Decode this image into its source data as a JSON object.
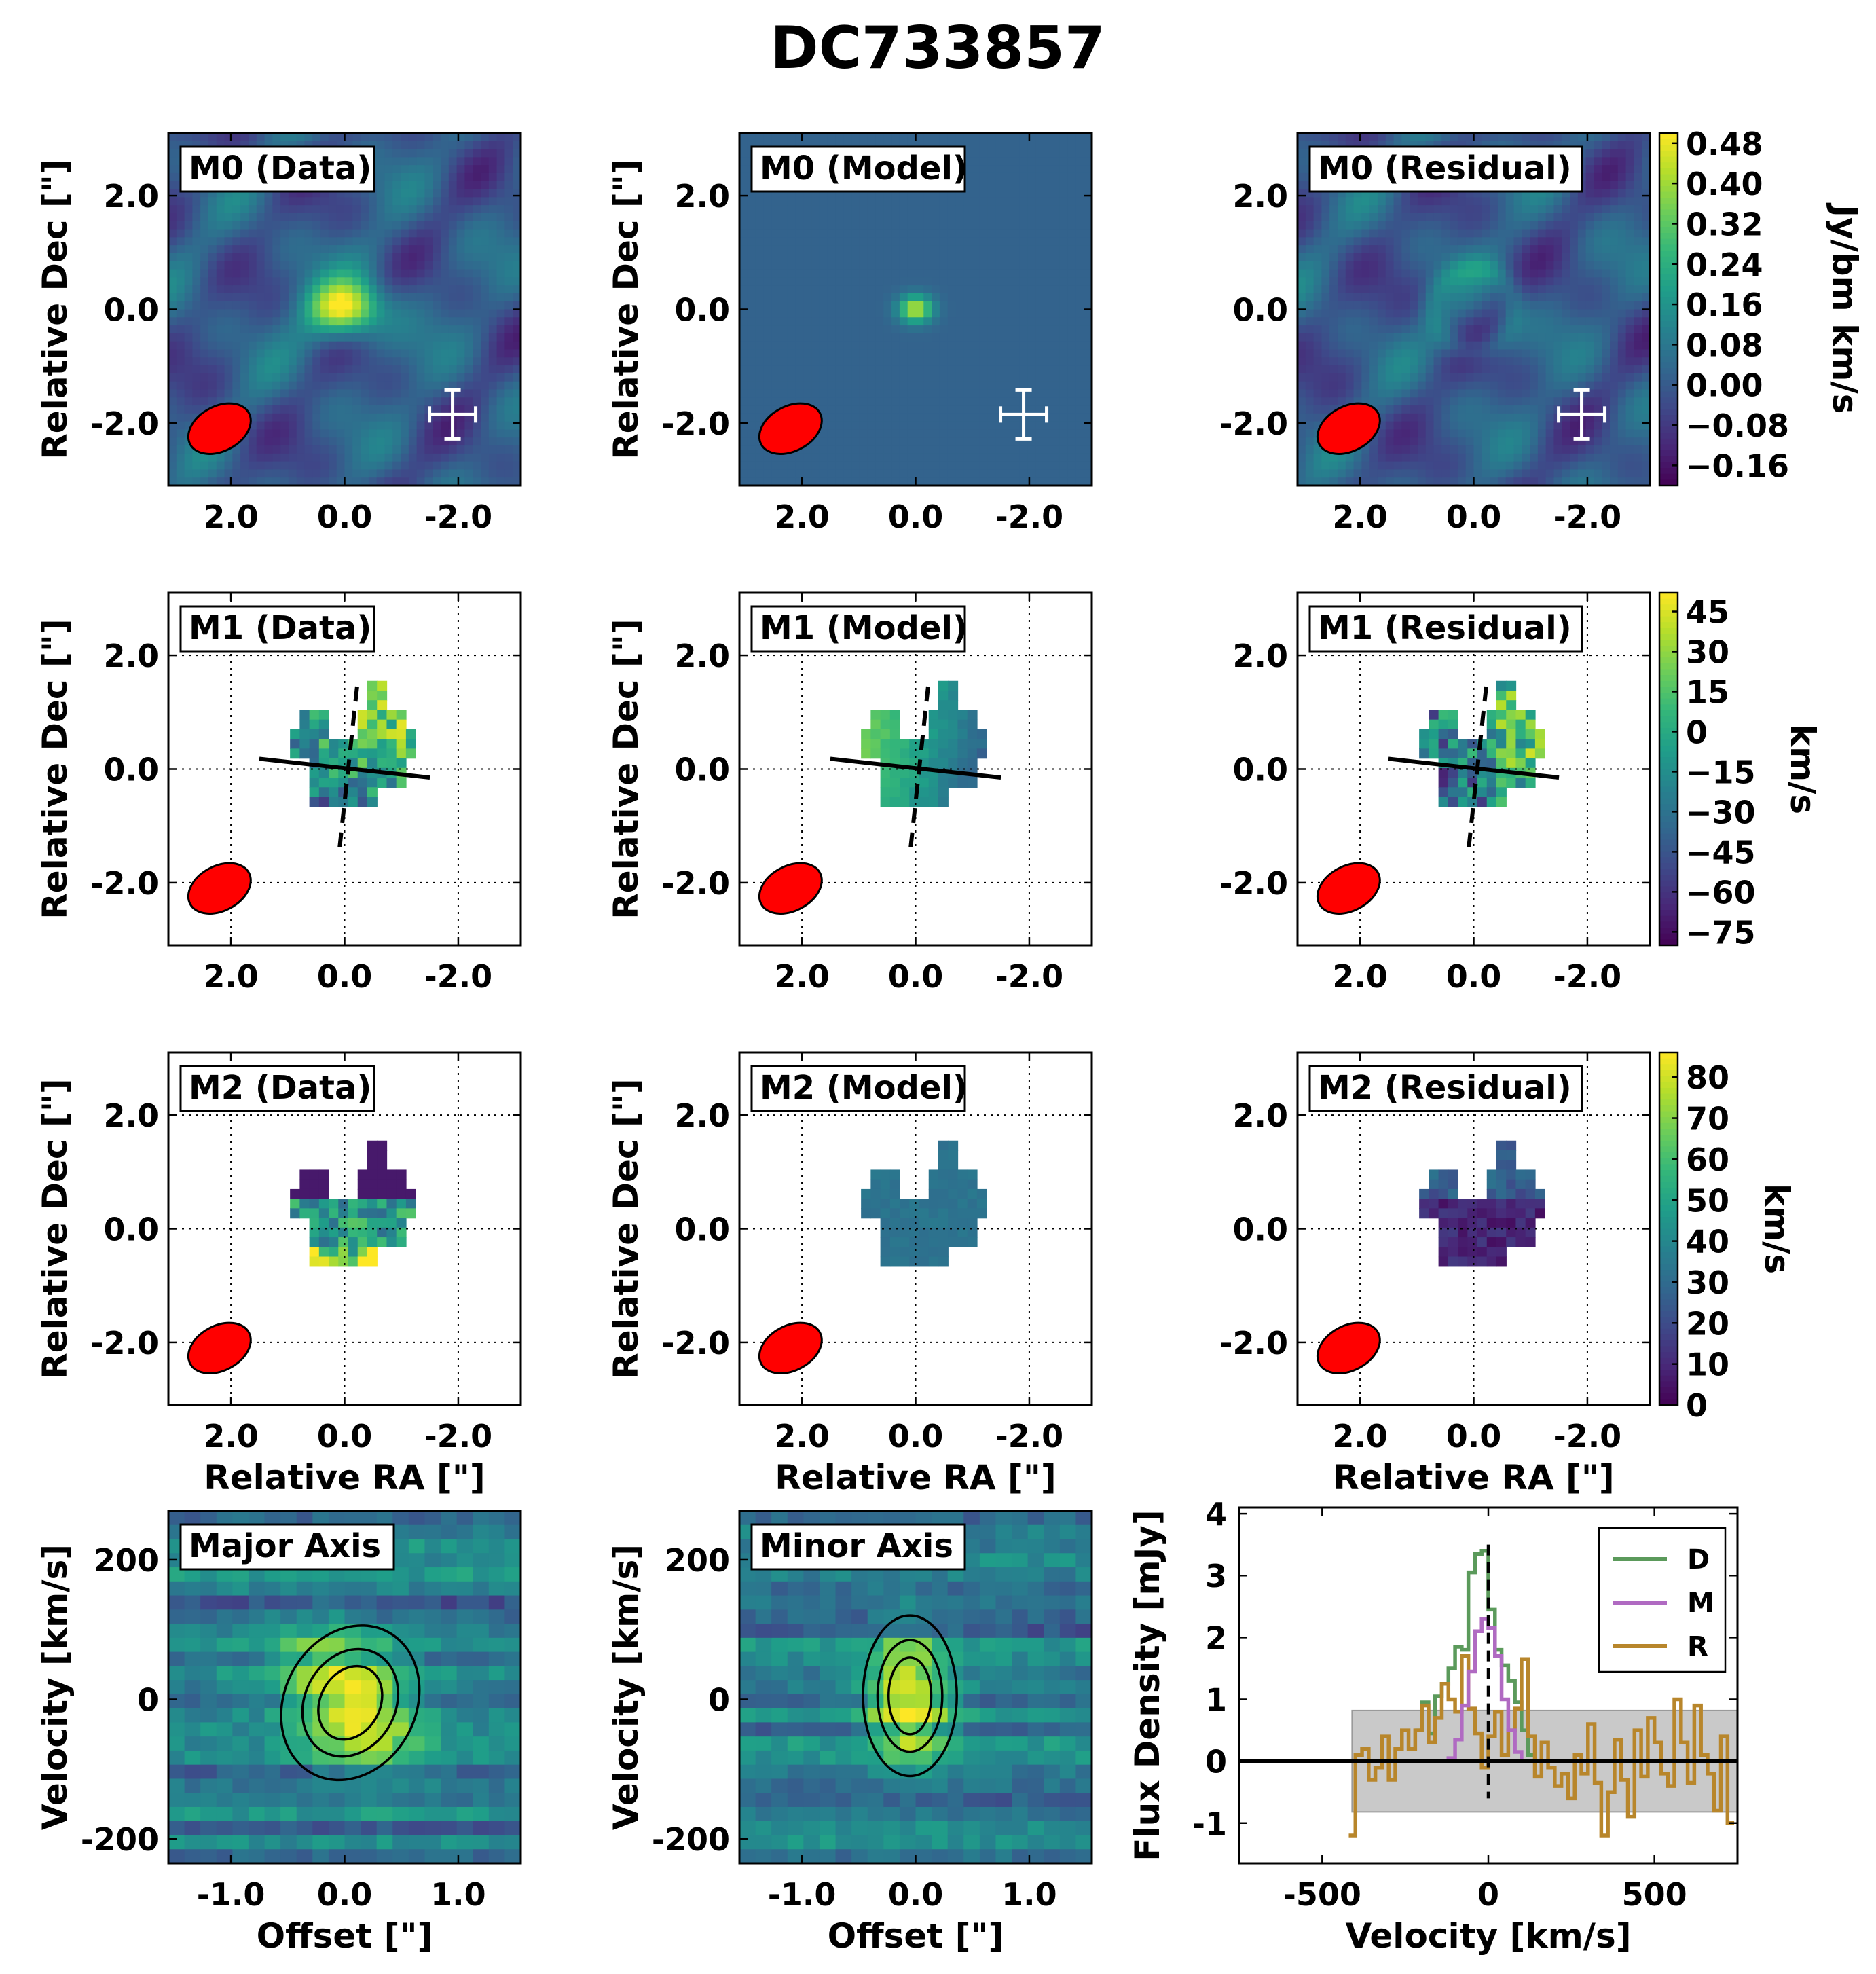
{
  "title": "DC733857",
  "colors": {
    "viridis": [
      "#440154",
      "#482878",
      "#3e4989",
      "#31688e",
      "#26828e",
      "#1f9e89",
      "#35b779",
      "#6ece58",
      "#b5de2b",
      "#fde725"
    ],
    "beam": "#ff0000",
    "data_line": "#5b9a5b",
    "model_line": "#b06ac2",
    "residual_line": "#b8862b",
    "noise_band": "#c9c9c9"
  },
  "panel_labels": {
    "m0": [
      "M0 (Data)",
      "M0 (Model)",
      "M0 (Residual)"
    ],
    "m1": [
      "M1 (Data)",
      "M1 (Model)",
      "M1 (Residual)"
    ],
    "m2": [
      "M2 (Data)",
      "M2 (Model)",
      "M2 (Residual)"
    ],
    "pv": [
      "Major Axis",
      "Minor Axis"
    ]
  },
  "map_axes": {
    "xlabel": "Relative RA [\"]",
    "ylabel": "Relative Dec [\"]",
    "ticks": [
      "2.0",
      "0.0",
      "-2.0"
    ],
    "tick_values": [
      2.0,
      0.0,
      -2.0
    ],
    "lim": [
      3.1,
      -3.1
    ]
  },
  "colorbars": {
    "m0": {
      "label": "Jy/bm km/s",
      "ticks": [
        "0.48",
        "0.40",
        "0.32",
        "0.24",
        "0.16",
        "0.08",
        "0.00",
        "−0.08",
        "−0.16"
      ],
      "tick_values": [
        0.48,
        0.4,
        0.32,
        0.24,
        0.16,
        0.08,
        0.0,
        -0.08,
        -0.16
      ],
      "range": [
        -0.2,
        0.5
      ]
    },
    "m1": {
      "label": "km/s",
      "ticks": [
        "45",
        "30",
        "15",
        "0",
        "−15",
        "−30",
        "−45",
        "−60",
        "−75"
      ],
      "tick_values": [
        45,
        30,
        15,
        0,
        -15,
        -30,
        -45,
        -60,
        -75
      ],
      "range": [
        -80,
        52
      ]
    },
    "m2": {
      "label": "km/s",
      "ticks": [
        "80",
        "70",
        "60",
        "50",
        "40",
        "30",
        "20",
        "10",
        "0"
      ],
      "tick_values": [
        80,
        70,
        60,
        50,
        40,
        30,
        20,
        10,
        0
      ],
      "range": [
        0,
        86
      ]
    }
  },
  "pv_axes": {
    "xlabel": "Offset [\"]",
    "ylabel": "Velocity [km/s]",
    "xticks": [
      "-1.0",
      "0.0",
      "1.0"
    ],
    "xtick_values": [
      -1.0,
      0.0,
      1.0
    ],
    "yticks": [
      "200",
      "0",
      "-200"
    ],
    "ytick_values": [
      200,
      0,
      -200
    ],
    "xlim": [
      -1.55,
      1.55
    ],
    "ylim": [
      -235,
      270
    ]
  },
  "chart_data": {
    "type": "line",
    "title": "",
    "xlabel": "Velocity [km/s]",
    "ylabel": "Flux Density [mJy]",
    "xlim": [
      -750,
      750
    ],
    "ylim": [
      -1.65,
      4.1
    ],
    "xticks": [
      "-500",
      "0",
      "500"
    ],
    "xtick_values": [
      -500,
      0,
      500
    ],
    "yticks": [
      "4",
      "3",
      "2",
      "1",
      "0",
      "-1"
    ],
    "ytick_values": [
      4,
      3,
      2,
      1,
      0,
      -1
    ],
    "legend_position": "top-right",
    "noise_band": {
      "x": [
        -410,
        750
      ],
      "y": [
        -0.82,
        0.82
      ]
    },
    "zero_line": 0,
    "vline": 0,
    "series": [
      {
        "name": "D",
        "x": [
          -210,
          -190,
          -170,
          -150,
          -130,
          -110,
          -90,
          -70,
          -50,
          -30,
          -10,
          10,
          30,
          50,
          70,
          90,
          110,
          130
        ],
        "y": [
          0.5,
          0.95,
          0.45,
          1.05,
          1.25,
          1.5,
          1.85,
          1.8,
          3.05,
          3.35,
          3.4,
          2.45,
          1.8,
          1.55,
          1.3,
          0.95,
          0.5,
          0.1
        ]
      },
      {
        "name": "M",
        "x": [
          -130,
          -110,
          -90,
          -70,
          -50,
          -30,
          -10,
          10,
          30,
          50,
          70,
          90,
          110
        ],
        "y": [
          0.0,
          0.05,
          0.35,
          0.9,
          1.45,
          2.1,
          2.3,
          2.15,
          1.7,
          1.0,
          0.5,
          0.15,
          0.0
        ]
      },
      {
        "name": "R",
        "x": [
          -410,
          -390,
          -370,
          -350,
          -330,
          -310,
          -290,
          -270,
          -250,
          -230,
          -210,
          -190,
          -170,
          -150,
          -130,
          -110,
          -90,
          -70,
          -50,
          -30,
          -10,
          10,
          30,
          50,
          70,
          90,
          110,
          130,
          150,
          170,
          190,
          210,
          230,
          250,
          270,
          290,
          310,
          330,
          350,
          370,
          390,
          410,
          430,
          450,
          470,
          490,
          510,
          530,
          550,
          570,
          590,
          610,
          630,
          650,
          670,
          690,
          710,
          730
        ],
        "y": [
          -1.2,
          0.1,
          0.2,
          -0.3,
          -0.1,
          0.4,
          -0.3,
          0.2,
          0.5,
          0.2,
          0.5,
          0.9,
          0.3,
          0.7,
          1.25,
          1.0,
          0.8,
          1.7,
          0.85,
          0.45,
          -0.1,
          0.4,
          0.8,
          0.1,
          0.5,
          0.85,
          1.65,
          0.4,
          -0.25,
          0.3,
          -0.1,
          -0.4,
          -0.2,
          -0.6,
          0.1,
          -0.2,
          0.6,
          -0.35,
          -1.2,
          -0.5,
          0.35,
          -0.3,
          -0.9,
          0.5,
          -0.25,
          0.7,
          0.3,
          -0.2,
          -0.4,
          1.0,
          0.3,
          -0.35,
          0.9,
          0.1,
          -0.2,
          -0.8,
          0.4,
          -1.0
        ]
      }
    ]
  }
}
